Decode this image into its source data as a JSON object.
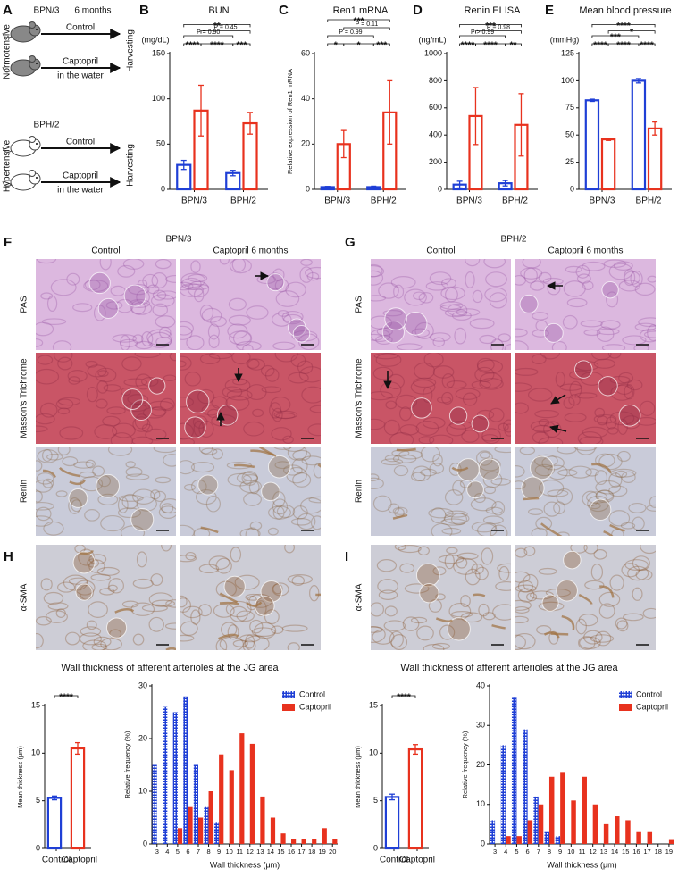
{
  "schematic": {
    "panel": "A",
    "groups": [
      {
        "strain": "BPN/3",
        "phenotype": "Normotensive",
        "duration": "6 months",
        "arms": [
          {
            "treatment": "Control"
          },
          {
            "treatment": "Captopril",
            "note": "in the water"
          }
        ],
        "endpoint": "Harvesting"
      },
      {
        "strain": "BPH/2",
        "phenotype": "Hypertensive",
        "arms": [
          {
            "treatment": "Control"
          },
          {
            "treatment": "Captopril",
            "note": "in the water"
          }
        ],
        "endpoint": "Harvesting"
      }
    ]
  },
  "chart_data": [
    {
      "type": "bar",
      "panel": "B",
      "title": "BUN",
      "ylabel": "(mg/dL)",
      "fill": "hollow",
      "categories": [
        "BPN/3",
        "BPH/2"
      ],
      "series": [
        {
          "color": "#1f3fd6",
          "values": [
            27,
            18
          ],
          "errors": [
            5,
            3
          ]
        },
        {
          "color": "#e8321e",
          "values": [
            87,
            73
          ],
          "errors": [
            28,
            12
          ]
        }
      ],
      "ylim": [
        0,
        150
      ],
      "yticks": [
        0,
        50,
        100,
        150
      ],
      "annotations": [
        "**",
        "P = 0.90",
        "P = 0.45",
        "****",
        "****",
        "***"
      ]
    },
    {
      "type": "bar",
      "panel": "C",
      "title": "Ren1 mRNA",
      "ylabel": "Relative expression of Ren1 mRNA",
      "fill": "hollow",
      "categories": [
        "BPN/3",
        "BPH/2"
      ],
      "series": [
        {
          "color": "#1f3fd6",
          "values": [
            1,
            1
          ],
          "errors": [
            0.3,
            0.4
          ]
        },
        {
          "color": "#e8321e",
          "values": [
            20,
            34
          ],
          "errors": [
            6,
            14
          ]
        }
      ],
      "ylim": [
        0,
        60
      ],
      "yticks": [
        0,
        20,
        40,
        60
      ],
      "annotations": [
        "***",
        "P = 0.11",
        "P = 0.99",
        "*",
        "*",
        "***"
      ]
    },
    {
      "type": "bar",
      "panel": "D",
      "title": "Renin ELISA",
      "ylabel": "(ng/mL)",
      "fill": "hollow",
      "categories": [
        "BPN/3",
        "BPH/2"
      ],
      "series": [
        {
          "color": "#1f3fd6",
          "values": [
            35,
            45
          ],
          "errors": [
            25,
            20
          ]
        },
        {
          "color": "#e8321e",
          "values": [
            540,
            475
          ],
          "errors": [
            210,
            230
          ]
        }
      ],
      "ylim": [
        0,
        1000
      ],
      "yticks": [
        0,
        200,
        400,
        600,
        800,
        1000
      ],
      "annotations": [
        "***",
        "P > 0.99",
        "P = 0.98",
        "****",
        "****",
        "**"
      ]
    },
    {
      "type": "bar",
      "panel": "E",
      "title": "Mean blood pressure",
      "ylabel": "(mmHg)",
      "fill": "hollow",
      "categories": [
        "BPN/3",
        "BPH/2"
      ],
      "series": [
        {
          "color": "#1f3fd6",
          "values": [
            82,
            100
          ],
          "errors": [
            1,
            2
          ]
        },
        {
          "color": "#e8321e",
          "values": [
            46,
            56
          ],
          "errors": [
            1,
            6
          ]
        }
      ],
      "ylim": [
        0,
        125
      ],
      "yticks": [
        0,
        25,
        50,
        75,
        100,
        125
      ],
      "annotations": [
        "****",
        "*",
        "***",
        "****",
        "****",
        "****"
      ]
    },
    {
      "type": "bar",
      "ylabel": "Mean thickness (μm)",
      "fill": "hollow",
      "categories": [
        "Control",
        "Captopril"
      ],
      "values": [
        5.3,
        10.5
      ],
      "errors": [
        0.2,
        0.6
      ],
      "colors": [
        "#1f3fd6",
        "#e8321e"
      ],
      "ylim": [
        0,
        15
      ],
      "yticks": [
        0,
        5,
        10,
        15
      ],
      "annotations": [
        "****"
      ]
    },
    {
      "type": "bar",
      "title": "Wall thickness of afferent arterioles at the JG area",
      "ylabel": "Relative frequency (%)",
      "xlabel": "Wall thickness (μm)",
      "fill": "solid",
      "legend": "upper-right",
      "categories": [
        3,
        4,
        5,
        6,
        7,
        8,
        9,
        10,
        11,
        12,
        13,
        14,
        15,
        16,
        17,
        18,
        19,
        20
      ],
      "series": [
        {
          "name": "Control",
          "color": "#1f3fd6",
          "hatch": true,
          "values": [
            15,
            26,
            25,
            28,
            15,
            7,
            4,
            0,
            0,
            0,
            0,
            0,
            0,
            0,
            0,
            0,
            0,
            0
          ]
        },
        {
          "name": "Captopril",
          "color": "#e8321e",
          "values": [
            0,
            0,
            3,
            7,
            5,
            10,
            17,
            14,
            21,
            19,
            9,
            5,
            2,
            1,
            1,
            1,
            3,
            1
          ]
        }
      ],
      "ylim": [
        0,
        30
      ],
      "yticks": [
        0,
        10,
        20,
        30
      ]
    },
    {
      "type": "bar",
      "ylabel": "Mean thickness (μm)",
      "fill": "hollow",
      "categories": [
        "Control",
        "Captopril"
      ],
      "values": [
        5.4,
        10.4
      ],
      "errors": [
        0.3,
        0.5
      ],
      "colors": [
        "#1f3fd6",
        "#e8321e"
      ],
      "ylim": [
        0,
        15
      ],
      "yticks": [
        0,
        5,
        10,
        15
      ],
      "annotations": [
        "****"
      ]
    },
    {
      "type": "bar",
      "title": "Wall thickness of afferent arterioles at the JG area",
      "ylabel": "Relative frequency (%)",
      "xlabel": "Wall thickness (μm)",
      "fill": "solid",
      "legend": "upper-right",
      "categories": [
        3,
        4,
        5,
        6,
        7,
        8,
        9,
        10,
        11,
        12,
        13,
        14,
        15,
        16,
        17,
        18,
        19
      ],
      "series": [
        {
          "name": "Control",
          "color": "#1f3fd6",
          "hatch": true,
          "values": [
            6,
            25,
            37,
            29,
            12,
            3,
            2,
            0,
            0,
            0,
            0,
            0,
            0,
            0,
            0,
            0,
            0
          ]
        },
        {
          "name": "Captopril",
          "color": "#e8321e",
          "values": [
            0,
            2,
            2,
            6,
            10,
            17,
            18,
            11,
            17,
            10,
            5,
            7,
            6,
            3,
            3,
            0,
            1
          ]
        }
      ],
      "ylim": [
        0,
        40
      ],
      "yticks": [
        0,
        10,
        20,
        30,
        40
      ]
    }
  ],
  "micrographs": [
    {
      "panel": "F",
      "group": "BPN/3",
      "columns": [
        "Control",
        "Captopril 6 months"
      ],
      "rows": [
        "PAS",
        "Masson's Trichrome",
        "Renin"
      ]
    },
    {
      "panel": "G",
      "group": "BPH/2",
      "columns": [
        "Control",
        "Captopril 6 months"
      ],
      "rows": [
        "PAS",
        "Masson's Trichrome",
        "Renin"
      ]
    },
    {
      "panel": "H",
      "rows": [
        "α-SMA"
      ]
    },
    {
      "panel": "I",
      "rows": [
        "α-SMA"
      ]
    }
  ]
}
